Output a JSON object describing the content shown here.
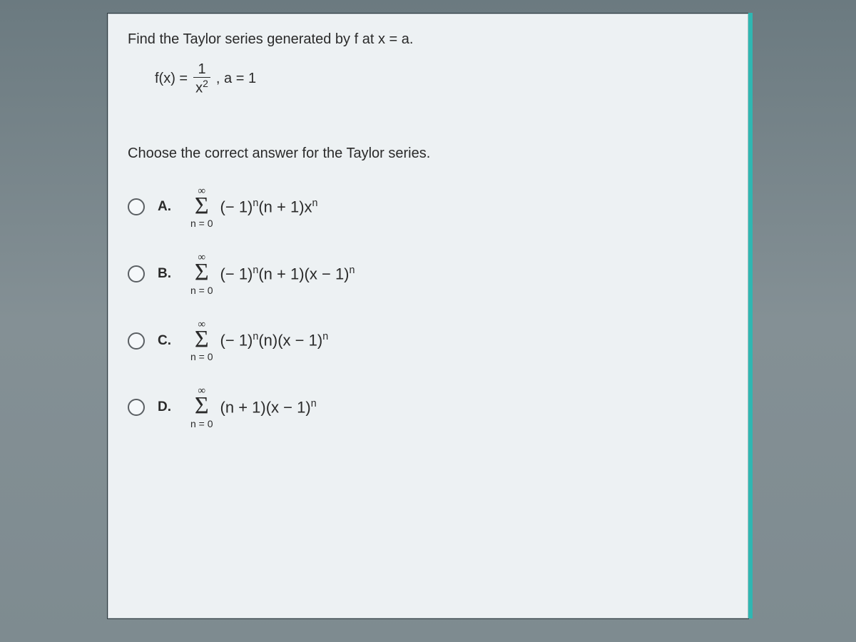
{
  "background_color": "#7a8a8f",
  "panel_bg": "#edf1f3",
  "panel_border": "#2f3a3f",
  "accent_color": "#2fb7b2",
  "text_color": "#2a2a2a",
  "question": {
    "header": "Find the Taylor series generated by f at x = a.",
    "func_prefix": "f(x) =",
    "frac_num": "1",
    "frac_den_base": "x",
    "frac_den_exp": "2",
    "func_suffix": ", a = 1",
    "prompt": "Choose the correct answer for the Taylor series."
  },
  "sigma": {
    "upper": "∞",
    "symbol": "Σ",
    "lower": "n = 0"
  },
  "options": [
    {
      "label": "A.",
      "term_html": "(− 1)<sup>n</sup>(n + 1)x<sup>n</sup>"
    },
    {
      "label": "B.",
      "term_html": "(− 1)<sup>n</sup>(n + 1)(x − 1)<sup>n</sup>"
    },
    {
      "label": "C.",
      "term_html": "(− 1)<sup>n</sup>(n)(x − 1)<sup>n</sup>"
    },
    {
      "label": "D.",
      "term_html": "(n + 1)(x − 1)<sup>n</sup>"
    }
  ]
}
